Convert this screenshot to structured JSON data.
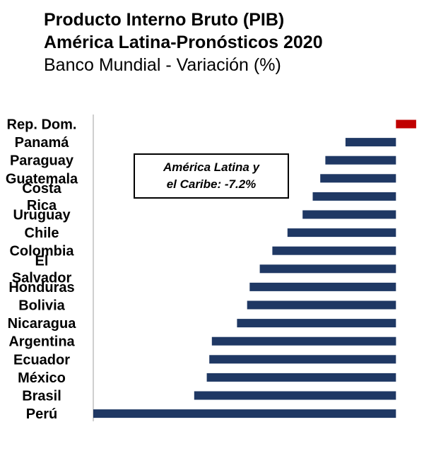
{
  "header": {
    "title_line1": "Producto Interno Bruto (PIB)",
    "title_line2": "América Latina-Pronósticos 2020",
    "subtitle": "Banco Mundial - Variación (%)"
  },
  "annotation": {
    "line1": "América Latina y",
    "line2": "el Caribe: -7.2%"
  },
  "colors": {
    "negative_bar": "#1f3864",
    "positive_bar": "#c00000",
    "axis": "#bfbfbf"
  },
  "chart_data": {
    "type": "bar",
    "orientation": "horizontal",
    "title": "Producto Interno Bruto (PIB) América Latina-Pronósticos 2020",
    "subtitle": "Banco Mundial - Variación (%)",
    "categories": [
      "Rep. Dom.",
      "Panamá",
      "Paraguay",
      "Guatemala",
      "Costa Rica",
      "Uruguay",
      "Chile",
      "Colombia",
      "El Salvador",
      "Honduras",
      "Bolivia",
      "Nicaragua",
      "Argentina",
      "Ecuador",
      "México",
      "Brasil",
      "Perú"
    ],
    "values": [
      0.8,
      -2.0,
      -2.8,
      -3.0,
      -3.3,
      -3.7,
      -4.3,
      -4.9,
      -5.4,
      -5.8,
      -5.9,
      -6.3,
      -7.3,
      -7.4,
      -7.5,
      -8.0,
      -12.0
    ],
    "xlim": [
      -12,
      1
    ],
    "xlabel": "",
    "ylabel": "",
    "grid": false,
    "legend": "none"
  }
}
